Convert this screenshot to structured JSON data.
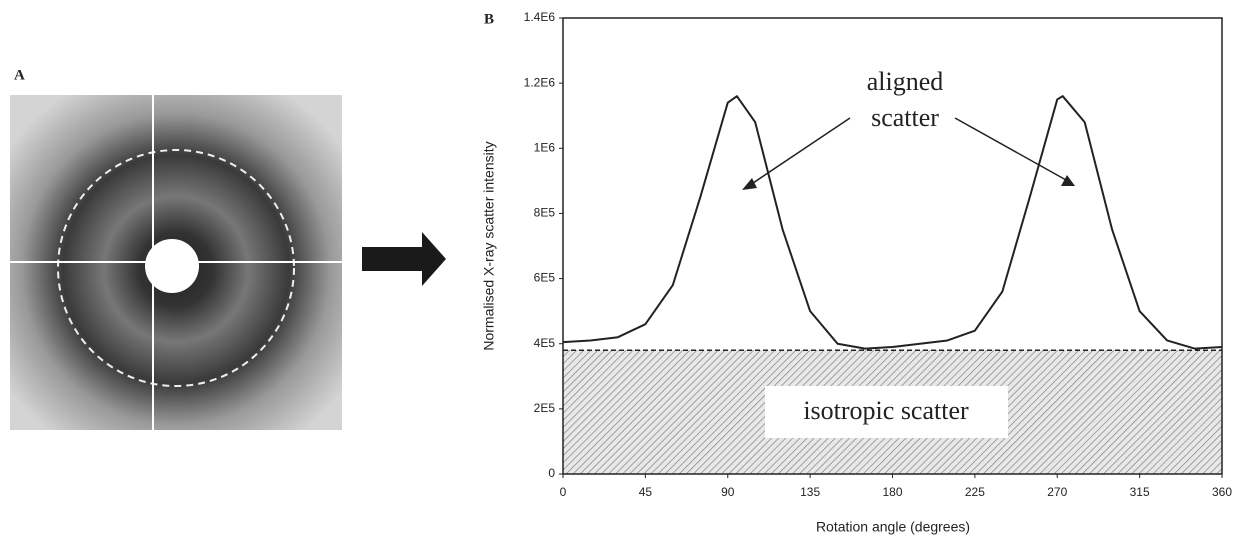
{
  "chart_data": {
    "type": "line",
    "panel_labels": [
      "A",
      "B"
    ],
    "xlabel": "Rotation angle (degrees)",
    "ylabel": "Normalised X-ray scatter intensity",
    "x": [
      0,
      15,
      30,
      45,
      60,
      75,
      90,
      95,
      105,
      120,
      135,
      150,
      165,
      180,
      195,
      210,
      225,
      240,
      255,
      270,
      273,
      285,
      300,
      315,
      330,
      345,
      360
    ],
    "series": [
      {
        "color": "#222222",
        "values": [
          405000,
          410000,
          420000,
          460000,
          580000,
          850000,
          1140000,
          1160000,
          1080000,
          750000,
          500000,
          400000,
          385000,
          390000,
          400000,
          410000,
          440000,
          560000,
          850000,
          1150000,
          1160000,
          1080000,
          750000,
          500000,
          410000,
          385000,
          390000
        ]
      }
    ],
    "baseline": 380000,
    "annotations": [
      "aligned",
      "scatter",
      "isotropic scatter"
    ],
    "xlim": [
      0,
      360
    ],
    "xticks": [
      0,
      45,
      90,
      135,
      180,
      225,
      270,
      315,
      360
    ],
    "ylim": [
      0,
      1400000
    ],
    "yticks": [
      0,
      {
        "value": 200000,
        "label": "2E5"
      },
      {
        "value": 400000,
        "label": "4E5"
      },
      {
        "value": 600000,
        "label": "6E5"
      },
      {
        "value": 800000,
        "label": "8E5"
      },
      {
        "value": 1000000,
        "label": "1E6"
      },
      {
        "value": 1200000,
        "label": "1.2E6"
      },
      {
        "value": 1400000,
        "label": "1.4E6"
      }
    ]
  }
}
